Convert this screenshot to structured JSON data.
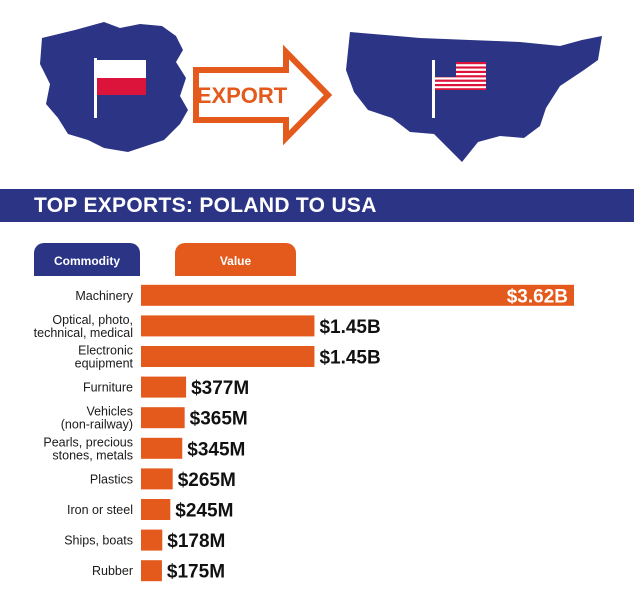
{
  "colors": {
    "navy": "#2c3486",
    "orange": "#e35a1c",
    "white": "#ffffff",
    "polish_red": "#dc143c"
  },
  "header": {
    "export_label": "EXPORT",
    "title": "TOP EXPORTS: POLAND TO USA"
  },
  "icons": [
    "poland-map-icon",
    "poland-flag-icon",
    "export-arrow-icon",
    "usa-map-icon",
    "usa-flag-icon"
  ],
  "tabs": {
    "commodity": "Commodity",
    "value": "Value"
  },
  "chart_data": {
    "type": "bar",
    "orientation": "horizontal",
    "categories": [
      "Machinery",
      "Optical, photo,\ntechnical, medical",
      "Electronic\nequipment",
      "Furniture",
      "Vehicles\n(non-railway)",
      "Pearls, precious\nstones, metals",
      "Plastics",
      "Iron or steel",
      "Ships, boats",
      "Rubber"
    ],
    "values": [
      3620,
      1450,
      1450,
      377,
      365,
      345,
      265,
      245,
      178,
      175
    ],
    "unit": "millions of USD",
    "value_labels": [
      "$3.62B",
      "$1.45B",
      "$1.45B",
      "$377M",
      "$365M",
      "$345M",
      "$265M",
      "$245M",
      "$178M",
      "$175M"
    ],
    "xlim": [
      0,
      3620
    ],
    "grid": false,
    "legend": "none"
  }
}
